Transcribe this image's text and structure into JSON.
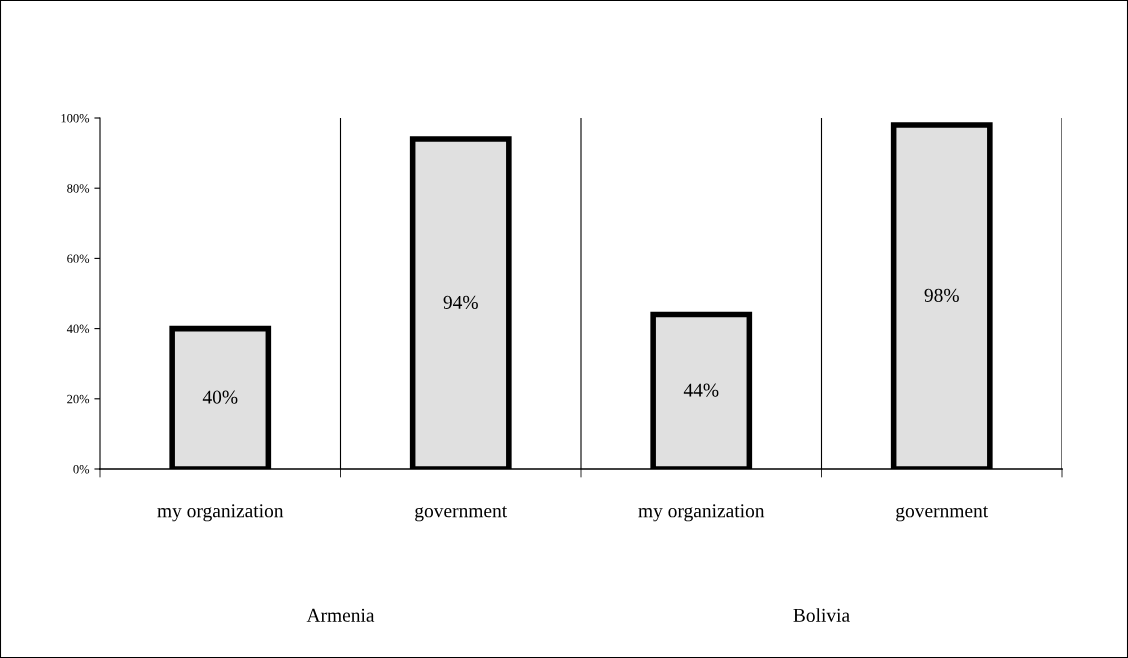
{
  "chart_data": {
    "type": "bar",
    "categories": [
      "my organization",
      "government",
      "my organization",
      "government"
    ],
    "values": [
      40,
      94,
      44,
      98
    ],
    "value_labels": [
      "40%",
      "94%",
      "44%",
      "98%"
    ],
    "color": "#e0e0e0",
    "ylim": [
      0,
      100
    ],
    "yticks": [
      {
        "value": 0,
        "label": "0%"
      },
      {
        "value": 20,
        "label": "20%"
      },
      {
        "value": 40,
        "label": "40%"
      },
      {
        "value": 60,
        "label": "60%"
      },
      {
        "value": 80,
        "label": "80%"
      },
      {
        "value": 100,
        "label": "100%"
      }
    ],
    "grid": "x",
    "legend": false,
    "annotations": [
      "Armenia",
      "Bolivia"
    ]
  }
}
